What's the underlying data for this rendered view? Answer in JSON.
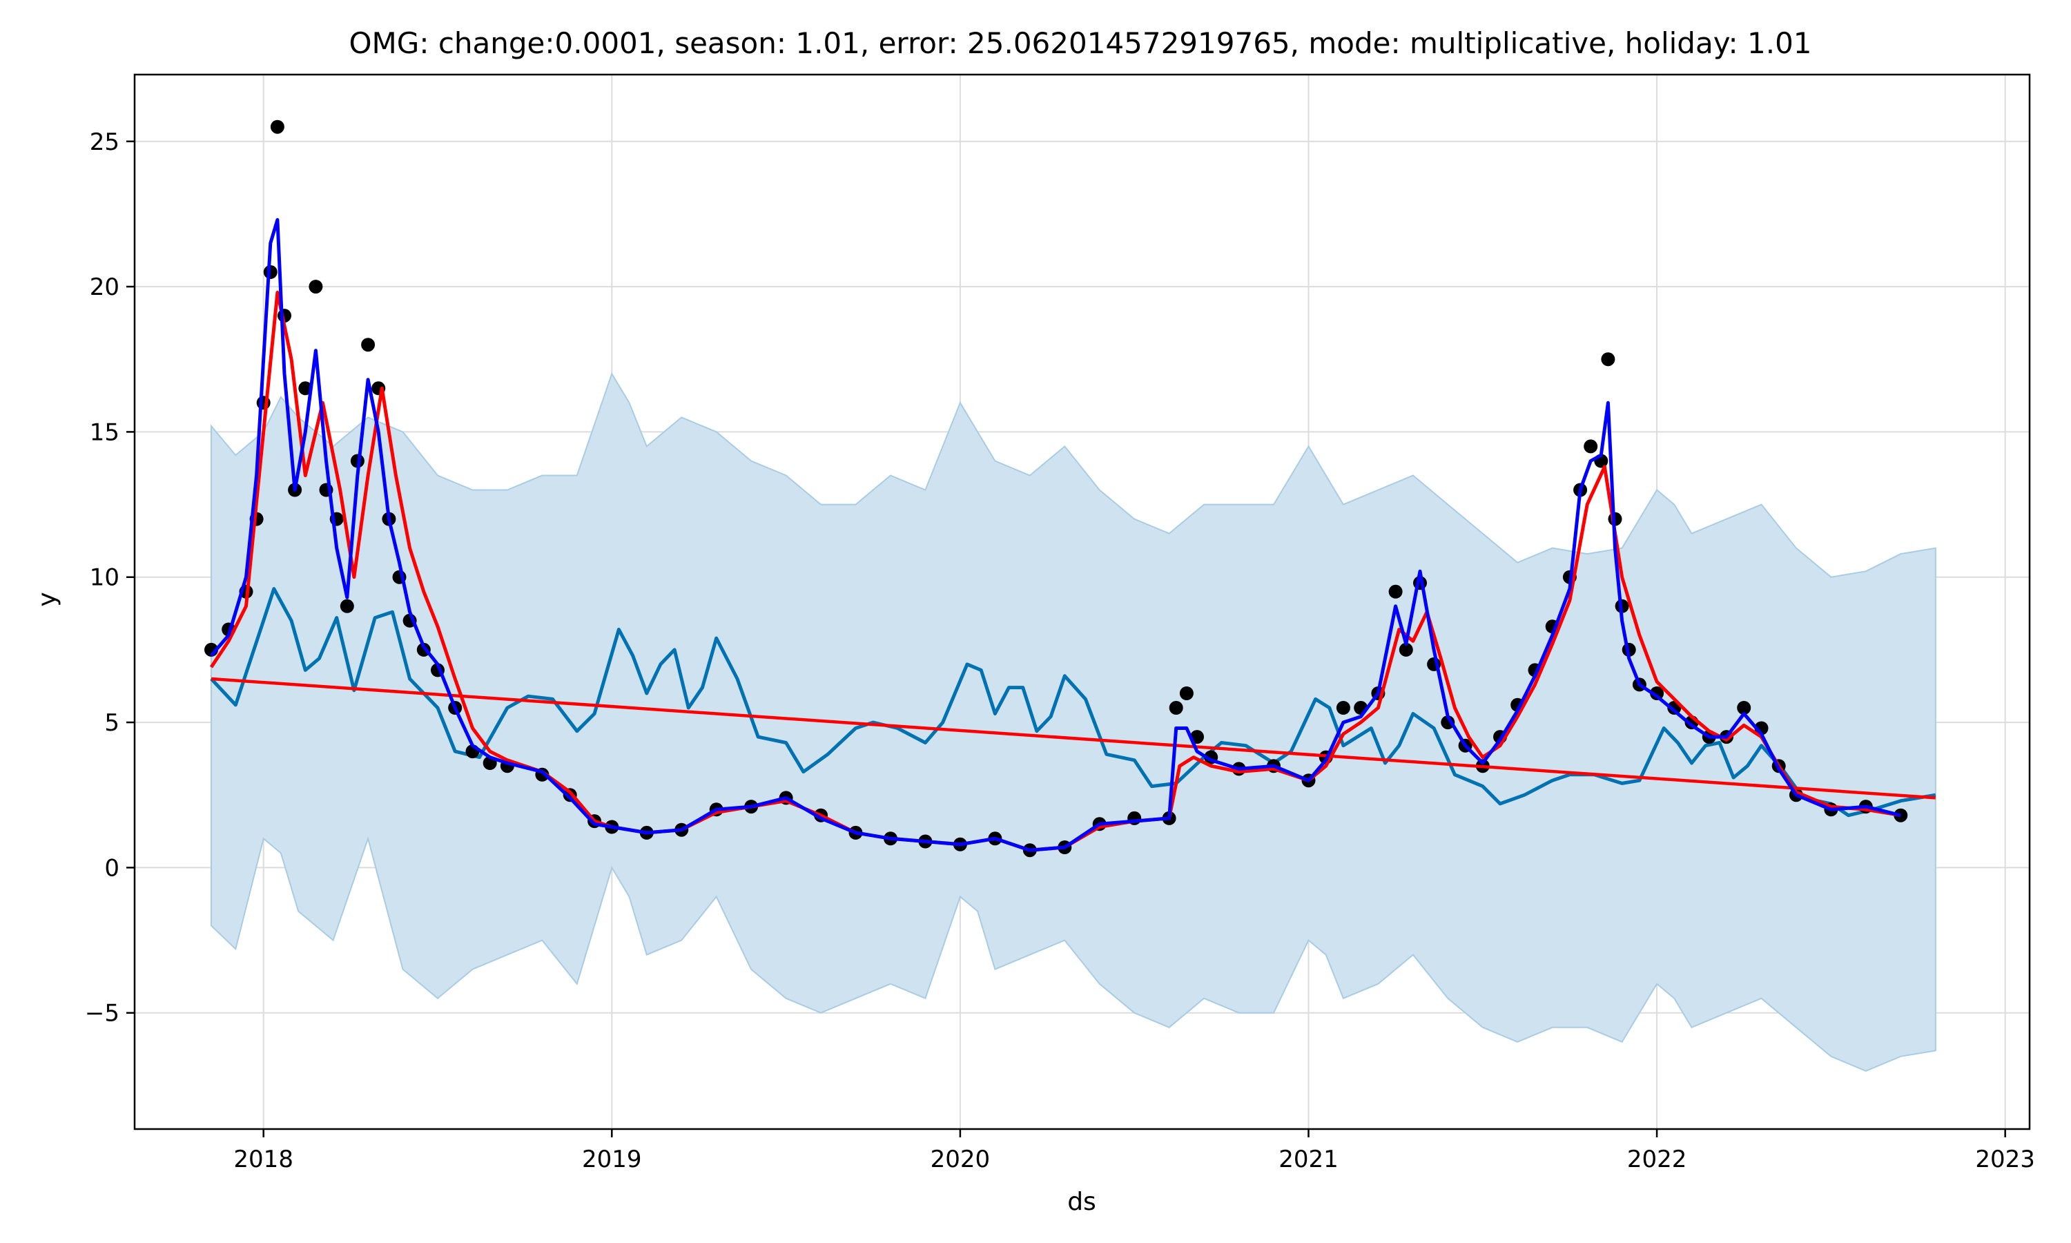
{
  "chart_data": {
    "type": "line",
    "title": "OMG: change:0.0001, season: 1.01, error: 25.062014572919765, mode: multiplicative, holiday: 1.01",
    "xlabel": "ds",
    "ylabel": "y",
    "xlim": [
      2017.63,
      2023.07
    ],
    "ylim": [
      -9,
      27.3
    ],
    "x_ticks": [
      2018,
      2019,
      2020,
      2021,
      2022,
      2023
    ],
    "x_tick_labels": [
      "2018",
      "2019",
      "2020",
      "2021",
      "2022",
      "2023"
    ],
    "y_ticks": [
      -5,
      0,
      5,
      10,
      15,
      20,
      25
    ],
    "y_tick_labels": [
      "−5",
      "0",
      "5",
      "10",
      "15",
      "20",
      "25"
    ],
    "grid": true,
    "colors": {
      "observed": "#000000",
      "fit": "#0000ff",
      "smoothed": "#ff0000",
      "trend": "#ff0000",
      "seasonal": "#0072b2",
      "interval_fill": "#cfe2f0",
      "interval_edge": "#a8cce4"
    },
    "series": [
      {
        "key": "observed",
        "style": "points",
        "x": [
          2017.85,
          2017.9,
          2017.95,
          2017.98,
          2018.0,
          2018.02,
          2018.04,
          2018.06,
          2018.09,
          2018.12,
          2018.15,
          2018.18,
          2018.21,
          2018.24,
          2018.27,
          2018.3,
          2018.33,
          2018.36,
          2018.39,
          2018.42,
          2018.46,
          2018.5,
          2018.55,
          2018.6,
          2018.65,
          2018.7,
          2018.8,
          2018.88,
          2018.95,
          2019.0,
          2019.1,
          2019.2,
          2019.3,
          2019.4,
          2019.5,
          2019.6,
          2019.7,
          2019.8,
          2019.9,
          2020.0,
          2020.1,
          2020.2,
          2020.3,
          2020.4,
          2020.5,
          2020.6,
          2020.62,
          2020.65,
          2020.68,
          2020.72,
          2020.8,
          2020.9,
          2021.0,
          2021.05,
          2021.1,
          2021.15,
          2021.2,
          2021.25,
          2021.28,
          2021.32,
          2021.36,
          2021.4,
          2021.45,
          2021.5,
          2021.55,
          2021.6,
          2021.65,
          2021.7,
          2021.75,
          2021.78,
          2021.81,
          2021.84,
          2021.86,
          2021.88,
          2021.9,
          2021.92,
          2021.95,
          2022.0,
          2022.05,
          2022.1,
          2022.15,
          2022.2,
          2022.25,
          2022.3,
          2022.35,
          2022.4,
          2022.5,
          2022.6,
          2022.7
        ],
        "y": [
          7.5,
          8.2,
          9.5,
          12.0,
          16.0,
          20.5,
          25.5,
          19.0,
          13.0,
          16.5,
          20.0,
          13.0,
          12.0,
          9.0,
          14.0,
          18.0,
          16.5,
          12.0,
          10.0,
          8.5,
          7.5,
          6.8,
          5.5,
          4.0,
          3.6,
          3.5,
          3.2,
          2.5,
          1.6,
          1.4,
          1.2,
          1.3,
          2.0,
          2.1,
          2.4,
          1.8,
          1.2,
          1.0,
          0.9,
          0.8,
          1.0,
          0.6,
          0.7,
          1.5,
          1.7,
          1.7,
          5.5,
          6.0,
          4.5,
          3.8,
          3.4,
          3.5,
          3.0,
          3.8,
          5.5,
          5.5,
          6.0,
          9.5,
          7.5,
          9.8,
          7.0,
          5.0,
          4.2,
          3.5,
          4.5,
          5.6,
          6.8,
          8.3,
          10.0,
          13.0,
          14.5,
          14.0,
          17.5,
          12.0,
          9.0,
          7.5,
          6.3,
          6.0,
          5.5,
          5.0,
          4.5,
          4.5,
          5.5,
          4.8,
          3.5,
          2.5,
          2.0,
          2.1,
          1.8
        ]
      },
      {
        "key": "fit",
        "style": "line",
        "x": [
          2017.85,
          2017.9,
          2017.95,
          2017.98,
          2018.0,
          2018.02,
          2018.04,
          2018.06,
          2018.09,
          2018.12,
          2018.15,
          2018.18,
          2018.21,
          2018.24,
          2018.27,
          2018.3,
          2018.33,
          2018.36,
          2018.39,
          2018.42,
          2018.46,
          2018.5,
          2018.55,
          2018.6,
          2018.65,
          2018.7,
          2018.8,
          2018.88,
          2018.95,
          2019.0,
          2019.1,
          2019.2,
          2019.3,
          2019.4,
          2019.5,
          2019.6,
          2019.7,
          2019.8,
          2019.9,
          2020.0,
          2020.1,
          2020.2,
          2020.3,
          2020.4,
          2020.5,
          2020.6,
          2020.62,
          2020.65,
          2020.68,
          2020.72,
          2020.8,
          2020.9,
          2021.0,
          2021.05,
          2021.1,
          2021.15,
          2021.2,
          2021.25,
          2021.28,
          2021.32,
          2021.36,
          2021.4,
          2021.45,
          2021.5,
          2021.55,
          2021.6,
          2021.65,
          2021.7,
          2021.75,
          2021.78,
          2021.81,
          2021.84,
          2021.86,
          2021.88,
          2021.9,
          2021.92,
          2021.95,
          2022.0,
          2022.05,
          2022.1,
          2022.15,
          2022.2,
          2022.25,
          2022.3,
          2022.35,
          2022.4,
          2022.5,
          2022.6,
          2022.7
        ],
        "y": [
          7.3,
          8.0,
          10.0,
          13.5,
          17.5,
          21.5,
          22.3,
          17.0,
          13.0,
          15.0,
          17.8,
          14.0,
          11.0,
          9.3,
          13.5,
          16.8,
          15.0,
          12.0,
          10.5,
          8.8,
          7.6,
          7.0,
          5.5,
          4.2,
          3.8,
          3.6,
          3.3,
          2.4,
          1.5,
          1.4,
          1.2,
          1.3,
          2.0,
          2.1,
          2.4,
          1.7,
          1.2,
          1.0,
          0.9,
          0.8,
          1.0,
          0.6,
          0.7,
          1.5,
          1.6,
          1.7,
          4.8,
          4.8,
          4.0,
          3.7,
          3.4,
          3.5,
          3.0,
          3.7,
          5.0,
          5.2,
          6.0,
          9.0,
          7.7,
          10.2,
          7.5,
          5.2,
          4.2,
          3.6,
          4.4,
          5.4,
          6.6,
          8.0,
          9.6,
          13.0,
          14.0,
          14.2,
          16.0,
          11.0,
          8.5,
          7.2,
          6.3,
          5.9,
          5.4,
          4.9,
          4.5,
          4.5,
          5.3,
          4.6,
          3.4,
          2.5,
          2.0,
          2.1,
          1.8
        ]
      },
      {
        "key": "smoothed",
        "style": "line",
        "x": [
          2017.85,
          2017.9,
          2017.95,
          2018.0,
          2018.04,
          2018.08,
          2018.12,
          2018.17,
          2018.22,
          2018.26,
          2018.3,
          2018.34,
          2018.38,
          2018.42,
          2018.46,
          2018.5,
          2018.55,
          2018.6,
          2018.65,
          2018.7,
          2018.8,
          2018.88,
          2018.95,
          2019.0,
          2019.1,
          2019.2,
          2019.3,
          2019.4,
          2019.5,
          2019.6,
          2019.7,
          2019.8,
          2019.9,
          2020.0,
          2020.1,
          2020.2,
          2020.3,
          2020.4,
          2020.5,
          2020.6,
          2020.63,
          2020.67,
          2020.72,
          2020.8,
          2020.9,
          2021.0,
          2021.05,
          2021.1,
          2021.15,
          2021.2,
          2021.26,
          2021.3,
          2021.34,
          2021.38,
          2021.42,
          2021.46,
          2021.5,
          2021.55,
          2021.6,
          2021.65,
          2021.7,
          2021.75,
          2021.8,
          2021.85,
          2021.9,
          2021.95,
          2022.0,
          2022.05,
          2022.1,
          2022.15,
          2022.2,
          2022.25,
          2022.3,
          2022.35,
          2022.4,
          2022.5,
          2022.6,
          2022.7
        ],
        "y": [
          6.9,
          7.8,
          9.0,
          15.0,
          19.8,
          17.5,
          13.5,
          16.0,
          13.0,
          10.0,
          13.5,
          16.5,
          13.5,
          11.0,
          9.5,
          8.3,
          6.5,
          4.8,
          4.0,
          3.7,
          3.3,
          2.6,
          1.6,
          1.4,
          1.2,
          1.3,
          1.9,
          2.1,
          2.3,
          1.8,
          1.2,
          1.0,
          0.9,
          0.8,
          1.0,
          0.6,
          0.7,
          1.4,
          1.6,
          1.7,
          3.5,
          3.8,
          3.5,
          3.3,
          3.4,
          3.0,
          3.5,
          4.6,
          5.0,
          5.5,
          8.2,
          7.8,
          8.8,
          7.2,
          5.5,
          4.5,
          3.8,
          4.2,
          5.2,
          6.3,
          7.7,
          9.2,
          12.5,
          13.8,
          10.0,
          8.0,
          6.4,
          5.8,
          5.2,
          4.7,
          4.4,
          4.9,
          4.5,
          3.5,
          2.6,
          2.1,
          2.0,
          1.8
        ]
      },
      {
        "key": "seasonal",
        "style": "line",
        "x": [
          2017.85,
          2017.92,
          2018.0,
          2018.03,
          2018.08,
          2018.12,
          2018.16,
          2018.21,
          2018.26,
          2018.32,
          2018.37,
          2018.42,
          2018.5,
          2018.55,
          2018.62,
          2018.7,
          2018.76,
          2018.83,
          2018.9,
          2018.95,
          2019.02,
          2019.06,
          2019.1,
          2019.14,
          2019.18,
          2019.22,
          2019.26,
          2019.3,
          2019.36,
          2019.42,
          2019.5,
          2019.55,
          2019.62,
          2019.7,
          2019.75,
          2019.82,
          2019.9,
          2019.95,
          2020.02,
          2020.06,
          2020.1,
          2020.14,
          2020.18,
          2020.22,
          2020.26,
          2020.3,
          2020.36,
          2020.42,
          2020.5,
          2020.55,
          2020.62,
          2020.7,
          2020.75,
          2020.82,
          2020.9,
          2020.95,
          2021.02,
          2021.06,
          2021.1,
          2021.14,
          2021.18,
          2021.22,
          2021.26,
          2021.3,
          2021.36,
          2021.42,
          2021.5,
          2021.55,
          2021.62,
          2021.7,
          2021.75,
          2021.82,
          2021.9,
          2021.95,
          2022.02,
          2022.06,
          2022.1,
          2022.14,
          2022.18,
          2022.22,
          2022.26,
          2022.3,
          2022.36,
          2022.42,
          2022.5,
          2022.55,
          2022.62,
          2022.7,
          2022.8
        ],
        "y": [
          6.5,
          5.6,
          8.5,
          9.6,
          8.5,
          6.8,
          7.2,
          8.6,
          6.1,
          8.6,
          8.8,
          6.5,
          5.5,
          4.0,
          3.8,
          5.5,
          5.9,
          5.8,
          4.7,
          5.3,
          8.2,
          7.3,
          6.0,
          7.0,
          7.5,
          5.5,
          6.2,
          7.9,
          6.5,
          4.5,
          4.3,
          3.3,
          3.9,
          4.8,
          5.0,
          4.8,
          4.3,
          5.0,
          7.0,
          6.8,
          5.3,
          6.2,
          6.2,
          4.7,
          5.2,
          6.6,
          5.8,
          3.9,
          3.7,
          2.8,
          2.9,
          3.8,
          4.3,
          4.2,
          3.6,
          4.0,
          5.8,
          5.5,
          4.2,
          4.5,
          4.8,
          3.6,
          4.2,
          5.3,
          4.8,
          3.2,
          2.8,
          2.2,
          2.5,
          3.0,
          3.2,
          3.2,
          2.9,
          3.0,
          4.8,
          4.3,
          3.6,
          4.2,
          4.3,
          3.1,
          3.5,
          4.2,
          3.4,
          2.4,
          2.2,
          1.8,
          2.0,
          2.3,
          2.5
        ]
      },
      {
        "key": "trend",
        "style": "line",
        "x": [
          2017.85,
          2022.8
        ],
        "y": [
          6.5,
          2.4
        ]
      },
      {
        "key": "interval_upper",
        "style": "band-top",
        "x": [
          2017.85,
          2017.92,
          2018.0,
          2018.05,
          2018.1,
          2018.2,
          2018.3,
          2018.4,
          2018.5,
          2018.6,
          2018.7,
          2018.8,
          2018.9,
          2019.0,
          2019.05,
          2019.1,
          2019.2,
          2019.3,
          2019.4,
          2019.5,
          2019.6,
          2019.7,
          2019.8,
          2019.9,
          2020.0,
          2020.05,
          2020.1,
          2020.2,
          2020.3,
          2020.4,
          2020.5,
          2020.6,
          2020.7,
          2020.8,
          2020.9,
          2021.0,
          2021.05,
          2021.1,
          2021.2,
          2021.3,
          2021.4,
          2021.5,
          2021.6,
          2021.7,
          2021.8,
          2021.9,
          2022.0,
          2022.05,
          2022.1,
          2022.2,
          2022.3,
          2022.4,
          2022.5,
          2022.6,
          2022.7,
          2022.8
        ],
        "y": [
          15.2,
          14.2,
          15.0,
          16.2,
          15.5,
          14.5,
          15.5,
          15.0,
          13.5,
          13.0,
          13.0,
          13.5,
          13.5,
          17.0,
          16.0,
          14.5,
          15.5,
          15.0,
          14.0,
          13.5,
          12.5,
          12.5,
          13.5,
          13.0,
          16.0,
          15.0,
          14.0,
          13.5,
          14.5,
          13.0,
          12.0,
          11.5,
          12.5,
          12.5,
          12.5,
          14.5,
          13.5,
          12.5,
          13.0,
          13.5,
          12.5,
          11.5,
          10.5,
          11.0,
          10.8,
          11.0,
          13.0,
          12.5,
          11.5,
          12.0,
          12.5,
          11.0,
          10.0,
          10.2,
          10.8,
          11.0
        ]
      },
      {
        "key": "interval_lower",
        "style": "band-bottom",
        "x": [
          2017.85,
          2017.92,
          2018.0,
          2018.05,
          2018.1,
          2018.2,
          2018.3,
          2018.4,
          2018.5,
          2018.6,
          2018.7,
          2018.8,
          2018.9,
          2019.0,
          2019.05,
          2019.1,
          2019.2,
          2019.3,
          2019.4,
          2019.5,
          2019.6,
          2019.7,
          2019.8,
          2019.9,
          2020.0,
          2020.05,
          2020.1,
          2020.2,
          2020.3,
          2020.4,
          2020.5,
          2020.6,
          2020.7,
          2020.8,
          2020.9,
          2021.0,
          2021.05,
          2021.1,
          2021.2,
          2021.3,
          2021.4,
          2021.5,
          2021.6,
          2021.7,
          2021.8,
          2021.9,
          2022.0,
          2022.05,
          2022.1,
          2022.2,
          2022.3,
          2022.4,
          2022.5,
          2022.6,
          2022.7,
          2022.8
        ],
        "y": [
          -2.0,
          -2.8,
          1.0,
          0.5,
          -1.5,
          -2.5,
          1.0,
          -3.5,
          -4.5,
          -3.5,
          -3.0,
          -2.5,
          -4.0,
          0.0,
          -1.0,
          -3.0,
          -2.5,
          -1.0,
          -3.5,
          -4.5,
          -5.0,
          -4.5,
          -4.0,
          -4.5,
          -1.0,
          -1.5,
          -3.5,
          -3.0,
          -2.5,
          -4.0,
          -5.0,
          -5.5,
          -4.5,
          -5.0,
          -5.0,
          -2.5,
          -3.0,
          -4.5,
          -4.0,
          -3.0,
          -4.5,
          -5.5,
          -6.0,
          -5.5,
          -5.5,
          -6.0,
          -4.0,
          -4.5,
          -5.5,
          -5.0,
          -4.5,
          -5.5,
          -6.5,
          -7.0,
          -6.5,
          -6.3
        ]
      }
    ]
  }
}
